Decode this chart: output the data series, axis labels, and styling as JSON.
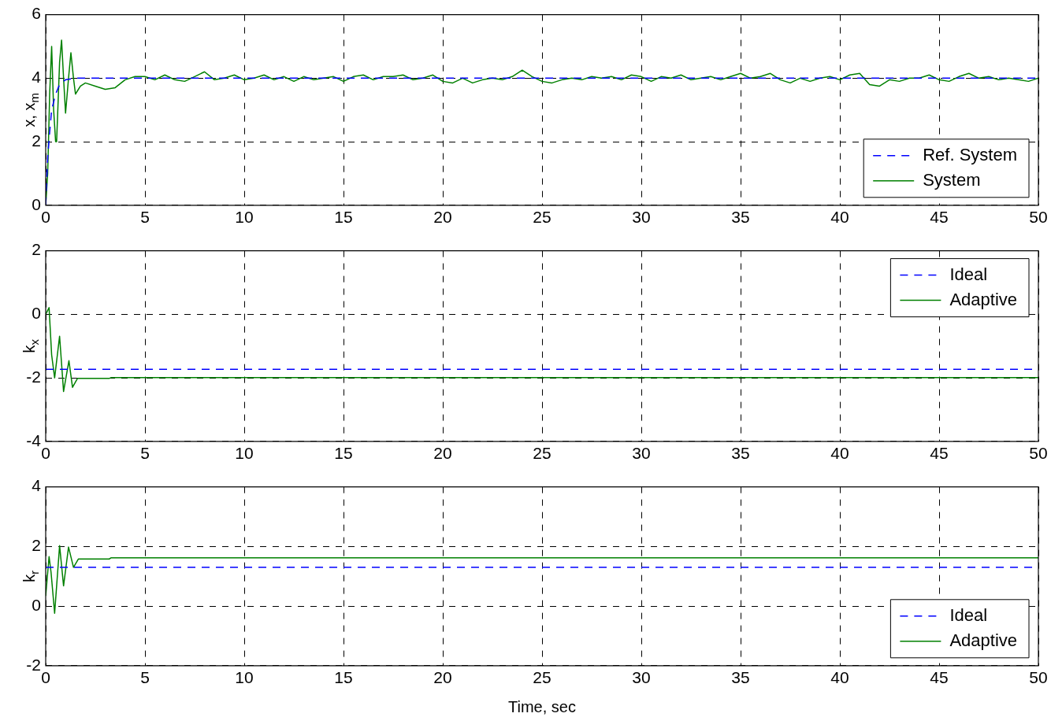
{
  "chart_data": [
    {
      "type": "line",
      "ylabel": "x, x$_{m}$",
      "xlim": [
        0,
        50
      ],
      "xticks": [
        0,
        5,
        10,
        15,
        20,
        25,
        30,
        35,
        40,
        45,
        50
      ],
      "ylim": [
        0,
        6
      ],
      "yticks": [
        0,
        2,
        4,
        6
      ],
      "grid": true,
      "legend": "bottom right",
      "series": [
        {
          "name": "Ref. System",
          "color": "#0000ff",
          "line_style": "dashed",
          "x": [
            0,
            0.1,
            0.2,
            0.3,
            0.5,
            0.7,
            1,
            1.5,
            50
          ],
          "values": [
            0,
            1.5,
            2.3,
            3.0,
            3.5,
            3.8,
            3.95,
            4,
            4
          ]
        },
        {
          "name": "System",
          "color": "#008000",
          "line_style": "solid",
          "x": [
            0,
            0.1,
            0.2,
            0.3,
            0.4,
            0.5,
            0.55,
            0.7,
            0.8,
            0.9,
            1.0,
            1.15,
            1.27,
            1.4,
            1.5,
            1.75,
            2,
            2.5,
            3,
            3.5,
            4,
            4.5,
            5,
            5.5,
            6,
            6.5,
            7,
            7.5,
            8,
            8.5,
            9,
            9.5,
            10,
            10.5,
            11,
            11.5,
            12,
            12.5,
            13,
            13.5,
            14,
            14.5,
            15,
            15.5,
            16,
            16.5,
            17,
            17.5,
            18,
            18.5,
            19,
            19.5,
            20,
            20.5,
            21,
            21.5,
            22,
            22.5,
            23,
            23.5,
            24,
            24.5,
            25,
            25.5,
            26,
            26.5,
            27,
            27.5,
            28,
            28.5,
            29,
            29.5,
            30,
            30.5,
            31,
            31.5,
            32,
            32.5,
            33,
            33.5,
            34,
            34.5,
            35,
            35.5,
            36,
            36.5,
            37,
            37.5,
            38,
            38.5,
            39,
            39.5,
            40,
            40.5,
            41,
            41.5,
            42,
            42.5,
            43,
            43.5,
            44,
            44.5,
            45,
            45.5,
            46,
            46.5,
            47,
            47.5,
            48,
            48.5,
            49,
            49.5,
            50
          ],
          "values": [
            0,
            1.0,
            3.5,
            5.0,
            3.0,
            2.0,
            2.0,
            4.5,
            5.2,
            4.0,
            2.9,
            4.0,
            4.8,
            4.0,
            3.5,
            3.75,
            3.85,
            3.75,
            3.65,
            3.7,
            3.95,
            4.05,
            4.05,
            3.95,
            4.1,
            3.95,
            3.9,
            4.05,
            4.2,
            3.95,
            4.0,
            4.1,
            3.95,
            4.0,
            4.1,
            3.95,
            4.05,
            3.9,
            4.05,
            3.95,
            4.0,
            4.05,
            3.9,
            4.05,
            4.1,
            3.95,
            4.05,
            4.05,
            4.1,
            3.95,
            4.0,
            4.1,
            3.9,
            3.85,
            4.0,
            3.85,
            3.95,
            4.0,
            3.95,
            4.05,
            4.25,
            4.05,
            3.9,
            3.85,
            3.95,
            4.0,
            3.95,
            4.05,
            4.0,
            4.05,
            3.95,
            4.1,
            4.05,
            3.9,
            4.05,
            4.0,
            4.1,
            3.95,
            4.0,
            4.05,
            3.95,
            4.05,
            4.15,
            4.0,
            4.05,
            4.15,
            3.95,
            3.85,
            4.0,
            3.9,
            4.0,
            4.05,
            3.95,
            4.1,
            4.15,
            3.8,
            3.75,
            3.95,
            3.9,
            4.0,
            4.0,
            4.1,
            3.95,
            3.9,
            4.05,
            4.15,
            4.0,
            4.05,
            3.95,
            4.0,
            3.95,
            3.9,
            4.0
          ]
        }
      ]
    },
    {
      "type": "line",
      "ylabel": "k$_{x}$",
      "xlim": [
        0,
        50
      ],
      "xticks": [
        0,
        5,
        10,
        15,
        20,
        25,
        30,
        35,
        40,
        45,
        50
      ],
      "ylim": [
        -4,
        2
      ],
      "yticks": [
        -4,
        -2,
        0,
        2
      ],
      "grid": true,
      "legend": "top right",
      "series": [
        {
          "name": "Ideal",
          "color": "#0000ff",
          "line_style": "dashed",
          "x": [
            0,
            50
          ],
          "values": [
            -1.73,
            -1.73
          ]
        },
        {
          "name": "Adaptive",
          "color": "#008000",
          "line_style": "solid",
          "x": [
            0,
            0.17,
            0.3,
            0.45,
            0.7,
            0.9,
            1.17,
            1.35,
            1.6,
            3.2,
            3.3,
            50
          ],
          "values": [
            0,
            0.21,
            -1.28,
            -2.0,
            -0.69,
            -2.43,
            -1.46,
            -2.3,
            -2.02,
            -2.02,
            -1.99,
            -1.99
          ]
        }
      ]
    },
    {
      "type": "line",
      "ylabel": "k$_{r}$",
      "xlabel": "Time, sec",
      "xlim": [
        0,
        50
      ],
      "xticks": [
        0,
        5,
        10,
        15,
        20,
        25,
        30,
        35,
        40,
        45,
        50
      ],
      "ylim": [
        -2,
        4
      ],
      "yticks": [
        -2,
        0,
        2,
        4
      ],
      "grid": true,
      "legend": "bottom right",
      "series": [
        {
          "name": "Ideal",
          "color": "#0000ff",
          "line_style": "dashed",
          "x": [
            0,
            50
          ],
          "values": [
            1.3,
            1.3
          ]
        },
        {
          "name": "Adaptive",
          "color": "#008000",
          "line_style": "solid",
          "x": [
            0,
            0.17,
            0.27,
            0.45,
            0.7,
            0.9,
            1.15,
            1.4,
            1.65,
            3.2,
            3.3,
            50
          ],
          "values": [
            0.34,
            1.66,
            1.13,
            -0.24,
            2.03,
            0.68,
            1.98,
            1.3,
            1.58,
            1.58,
            1.62,
            1.62
          ]
        }
      ]
    }
  ]
}
